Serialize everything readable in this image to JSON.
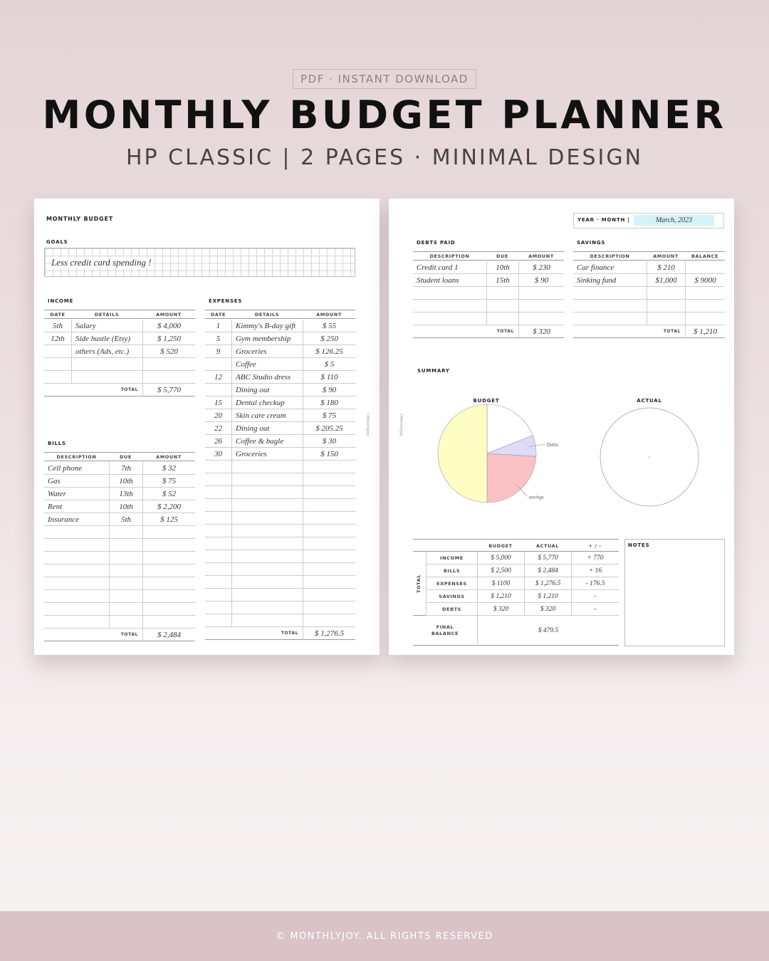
{
  "header": {
    "badge": "PDF · INSTANT DOWNLOAD",
    "title": "MONTHLY BUDGET PLANNER",
    "subtitle": "HP CLASSIC | 2 PAGES · MINIMAL DESIGN"
  },
  "left_page": {
    "title": "MONTHLY BUDGET",
    "spine": "©MonthlyJoy",
    "goals": {
      "label": "GOALS",
      "text": "Less credit card spending !"
    },
    "income": {
      "label": "INCOME",
      "headers": [
        "DATE",
        "DETAILS",
        "AMOUNT"
      ],
      "rows": [
        [
          "5th",
          "Salary",
          "$ 4,000"
        ],
        [
          "12th",
          "Side hustle (Etsy)",
          "$ 1,250"
        ],
        [
          null,
          "others (Ads, etc.)",
          "$ 520"
        ]
      ],
      "total_label": "TOTAL",
      "total": "$ 5,770"
    },
    "bills": {
      "label": "BILLS",
      "headers": [
        "DESCRIPTION",
        "DUE",
        "AMOUNT"
      ],
      "rows": [
        [
          "Cell phone",
          "7th",
          "$ 32"
        ],
        [
          "Gas",
          "10th",
          "$ 75"
        ],
        [
          "Water",
          "13th",
          "$ 52"
        ],
        [
          "Rent",
          "10th",
          "$ 2,200"
        ],
        [
          "Insurance",
          "5th",
          "$ 125"
        ]
      ],
      "total_label": "TOTAL",
      "total": "$ 2,484"
    },
    "expenses": {
      "label": "EXPENSES",
      "headers": [
        "DATE",
        "DETAILS",
        "AMOUNT"
      ],
      "rows": [
        [
          "1",
          "Kimmy's B-day gift",
          "$ 55"
        ],
        [
          "5",
          "Gym membership",
          "$ 250"
        ],
        [
          "9",
          "Groceries",
          "$ 126.25"
        ],
        [
          null,
          "Coffee",
          "$ 5"
        ],
        [
          "12",
          "ABC Studio dress",
          "$ 110"
        ],
        [
          null,
          "Dining out",
          "$ 90"
        ],
        [
          "15",
          "Dental checkup",
          "$ 180"
        ],
        [
          "20",
          "Skin care cream",
          "$ 75"
        ],
        [
          "22",
          "Dining out",
          "$ 205.25"
        ],
        [
          "26",
          "Coffee & bagle",
          "$ 30"
        ],
        [
          "30",
          "Groceries",
          "$ 150"
        ]
      ],
      "total_label": "TOTAL",
      "total": "$ 1,276.5"
    }
  },
  "right_page": {
    "spine": "©MonthlyJoy",
    "year_month": {
      "label": "YEAR · MONTH |",
      "value": "March, 2023"
    },
    "debts_paid": {
      "label": "DEBTS PAID",
      "headers": [
        "DESCRIPTION",
        "DUE",
        "AMOUNT"
      ],
      "rows": [
        [
          "Credit card 1",
          "10th",
          "$ 230"
        ],
        [
          "Student loans",
          "15th",
          "$ 90"
        ]
      ],
      "total_label": "TOTAL",
      "total": "$ 320"
    },
    "savings": {
      "label": "SAVINGS",
      "headers": [
        "DESCRIPTION",
        "AMOUNT",
        "BALANCE"
      ],
      "rows": [
        [
          "Car finance",
          "$ 210",
          null
        ],
        [
          "Sinking fund",
          "$1,000",
          "$ 9000"
        ]
      ],
      "total_label": "TOTAL",
      "total": "$ 1,210"
    },
    "summary": {
      "label": "SUMMARY",
      "budget_pie": {
        "title": "BUDGET",
        "slices": [
          {
            "color": "#ffffff",
            "value": 19
          },
          {
            "name": "Debts",
            "color": "#dcdcf8",
            "value": 7
          },
          {
            "name": "savings",
            "color": "#fbc2c6",
            "value": 24
          },
          {
            "color": "#fdfdc4",
            "value": 50
          }
        ]
      },
      "actual_pie": {
        "title": "ACTUAL"
      },
      "table": {
        "headers": [
          "BUDGET",
          "ACTUAL",
          "+ / -"
        ],
        "side_label": "TOTAL",
        "rows": [
          [
            "INCOME",
            "$ 5,000",
            "$ 5,770",
            "+ 770"
          ],
          [
            "BILLS",
            "$ 2,500",
            "$ 2,484",
            "+ 16"
          ],
          [
            "EXPENSES",
            "$ 1100",
            "$ 1,276.5",
            "- 176.5"
          ],
          [
            "SAVINGS",
            "$ 1,210",
            "$ 1,210",
            "-"
          ],
          [
            "DEBTS",
            "$ 320",
            "$ 320",
            "-"
          ]
        ],
        "final_label": "FINAL BALANCE",
        "final_value": "$ 479.5"
      },
      "notes": {
        "label": "NOTES"
      }
    }
  },
  "footer": {
    "text": "© MONTHLYJOY. ALL RIGHTS RESERVED"
  }
}
